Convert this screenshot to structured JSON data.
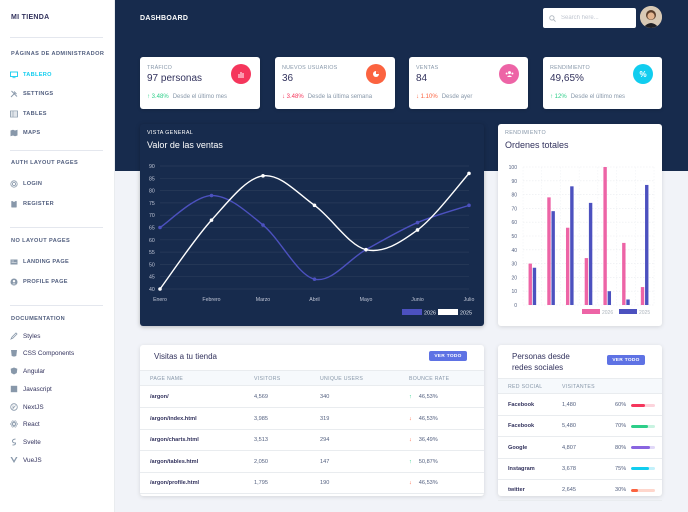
{
  "brand": "MI TIENDA",
  "sidebar": {
    "admin_title": "PÁGINAS DE ADMINISTRADOR",
    "admin_items": [
      {
        "label": "TABLERO",
        "icon": "monitor-icon"
      },
      {
        "label": "SETTINGS",
        "icon": "tools-icon"
      },
      {
        "label": "TABLES",
        "icon": "table-icon"
      },
      {
        "label": "MAPS",
        "icon": "map-icon"
      }
    ],
    "auth_title": "AUTH LAYOUT PAGES",
    "auth_items": [
      {
        "label": "LOGIN",
        "icon": "fingerprint-icon"
      },
      {
        "label": "REGISTER",
        "icon": "clipboard-icon"
      }
    ],
    "nolayout_title": "NO LAYOUT PAGES",
    "nolayout_items": [
      {
        "label": "LANDING PAGE",
        "icon": "newspaper-icon"
      },
      {
        "label": "PROFILE PAGE",
        "icon": "user-circle-icon"
      }
    ],
    "docs_title": "DOCUMENTATION",
    "docs_items": [
      {
        "label": "Styles",
        "icon": "paint-icon"
      },
      {
        "label": "CSS Components",
        "icon": "css-icon"
      },
      {
        "label": "Angular",
        "icon": "angular-icon"
      },
      {
        "label": "Javascript",
        "icon": "js-icon"
      },
      {
        "label": "NextJS",
        "icon": "nextjs-icon"
      },
      {
        "label": "React",
        "icon": "react-icon"
      },
      {
        "label": "Svelte",
        "icon": "svelte-icon"
      },
      {
        "label": "VueJS",
        "icon": "vue-icon"
      }
    ]
  },
  "header": {
    "title": "DASHBOARD",
    "search_placeholder": "Search here..."
  },
  "stats": [
    {
      "label": "TRÁFICO",
      "value": "97 personas",
      "change": "3.48%",
      "direction": "up",
      "since": "Desde el último mes",
      "icon": "chart-bar-icon",
      "color": "#f5365c"
    },
    {
      "label": "NUEVOS USUARIOS",
      "value": "36",
      "change": "3.48%",
      "direction": "down",
      "since": "Desde la última semana",
      "icon": "chart-pie-icon",
      "color": "#fb6340"
    },
    {
      "label": "VENTAS",
      "value": "84",
      "change": "1.10%",
      "direction": "down",
      "since": "Desde ayer",
      "icon": "users-icon",
      "color": "#f3a4b5"
    },
    {
      "label": "RENDIMIENTO",
      "value": "49,65%",
      "change": "12%",
      "direction": "up",
      "since": "Desde el último mes",
      "icon": "percent-icon",
      "color": "#11cdef"
    }
  ],
  "sales_card": {
    "overline": "VISTA GENERAL",
    "title": "Valor de las ventas"
  },
  "orders_card": {
    "overline": "RENDIMIENTO",
    "title": "Ordenes totales"
  },
  "chart_data": [
    {
      "type": "line",
      "title": "Valor de las ventas",
      "categories": [
        "Enero",
        "Febrero",
        "Marzo",
        "Abril",
        "Mayo",
        "Junio",
        "Julio"
      ],
      "ylim": [
        40,
        90
      ],
      "yticks": [
        40,
        45,
        50,
        55,
        60,
        65,
        70,
        75,
        80,
        85,
        90
      ],
      "series": [
        {
          "name": "2026",
          "color": "#4c51bf",
          "values": [
            65,
            78,
            66,
            44,
            56,
            67,
            74
          ]
        },
        {
          "name": "2025",
          "color": "#ffffff",
          "values": [
            40,
            68,
            86,
            74,
            56,
            64,
            87
          ]
        }
      ],
      "legend": "bottom-right"
    },
    {
      "type": "bar",
      "title": "Ordenes totales",
      "categories": [
        "",
        "",
        "",
        "",
        "",
        "",
        ""
      ],
      "ylim": [
        0,
        100
      ],
      "yticks": [
        0,
        10,
        20,
        30,
        40,
        50,
        60,
        70,
        80,
        90,
        100
      ],
      "series": [
        {
          "name": "2026",
          "color": "#ed64a6",
          "values": [
            30,
            78,
            56,
            34,
            100,
            45,
            13
          ]
        },
        {
          "name": "2025",
          "color": "#4c51bf",
          "values": [
            27,
            68,
            86,
            74,
            10,
            4,
            87
          ]
        }
      ],
      "legend": "bottom-right"
    }
  ],
  "visits": {
    "title": "Visitas a tu tienda",
    "button": "VER TODO",
    "headers": [
      "PAGE NAME",
      "VISITORS",
      "UNIQUE USERS",
      "BOUNCE RATE"
    ],
    "rows": [
      {
        "page": "/argon/",
        "visitors": "4,569",
        "unique": "340",
        "bounce": "46,53%",
        "dir": "up"
      },
      {
        "page": "/argon/index.html",
        "visitors": "3,985",
        "unique": "319",
        "bounce": "46,53%",
        "dir": "down"
      },
      {
        "page": "/argon/charts.html",
        "visitors": "3,513",
        "unique": "294",
        "bounce": "36,49%",
        "dir": "down"
      },
      {
        "page": "/argon/tables.html",
        "visitors": "2,050",
        "unique": "147",
        "bounce": "50,87%",
        "dir": "up"
      },
      {
        "page": "/argon/profile.html",
        "visitors": "1,795",
        "unique": "190",
        "bounce": "46,53%",
        "dir": "down"
      }
    ]
  },
  "social": {
    "title": "Personas desde redes sociales",
    "title_line1": "Personas desde",
    "title_line2": "redes sociales",
    "button": "VER TODO",
    "headers": [
      "RED SOCIAL",
      "VISITANTES",
      ""
    ],
    "rows": [
      {
        "name": "Facebook",
        "visitors": "1,480",
        "percent": "60%",
        "fill": 0.6,
        "color": "#f5365c",
        "bg": "#fcd4dc"
      },
      {
        "name": "Facebook",
        "visitors": "5,480",
        "percent": "70%",
        "fill": 0.7,
        "color": "#2dce89",
        "bg": "#c9f3e1"
      },
      {
        "name": "Google",
        "visitors": "4,807",
        "percent": "80%",
        "fill": 0.8,
        "color": "#8965e0",
        "bg": "#e1d8f8"
      },
      {
        "name": "Instagram",
        "visitors": "3,678",
        "percent": "75%",
        "fill": 0.75,
        "color": "#11cdef",
        "bg": "#c3f1fb"
      },
      {
        "name": "twitter",
        "visitors": "2,645",
        "percent": "30%",
        "fill": 0.3,
        "color": "#fb6340",
        "bg": "#fed6cc"
      }
    ]
  }
}
